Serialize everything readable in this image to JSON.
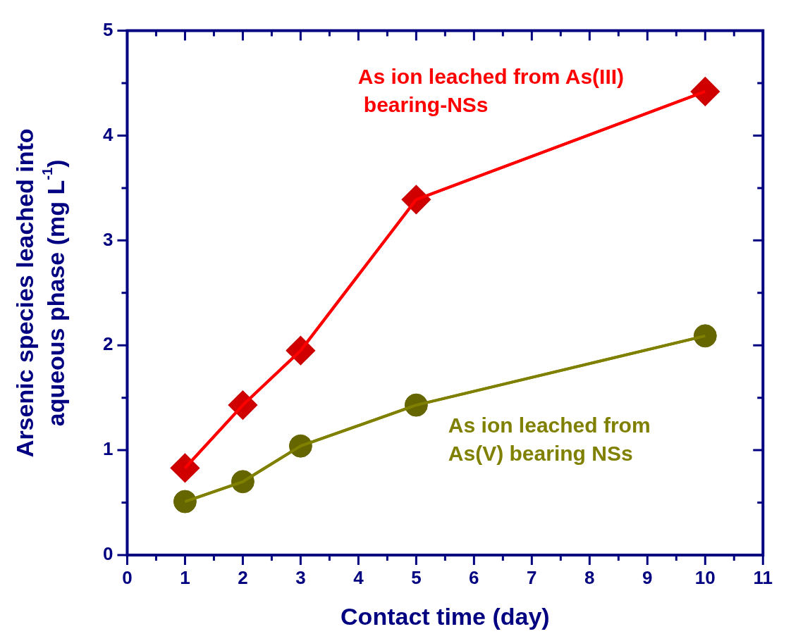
{
  "chart_data": {
    "type": "line",
    "xlabel": "Contact time (day)",
    "ylabel": "Arsenic species leached into aqueous phase (mg L$^{-1}$)",
    "xlim": [
      0,
      11
    ],
    "xticks": [
      0,
      1,
      2,
      3,
      4,
      5,
      6,
      7,
      8,
      9,
      10,
      11
    ],
    "ylim": [
      0,
      5
    ],
    "yticks": [
      0,
      1,
      2,
      3,
      4,
      5
    ],
    "grid": false,
    "legend": false,
    "line_style": "solid",
    "series": [
      {
        "name": "As ion leached from As(III) bearing-NSs",
        "color": "#ff0000",
        "marker": "diamond",
        "x": [
          1,
          2,
          3,
          5,
          10
        ],
        "values": [
          0.83,
          1.43,
          1.95,
          3.39,
          4.42
        ]
      },
      {
        "name": "As ion leached from As(V) bearing NSs",
        "color": "#808000",
        "marker": "circle",
        "x": [
          1,
          2,
          3,
          5,
          10
        ],
        "values": [
          0.51,
          0.7,
          1.04,
          1.43,
          2.09
        ]
      }
    ]
  }
}
